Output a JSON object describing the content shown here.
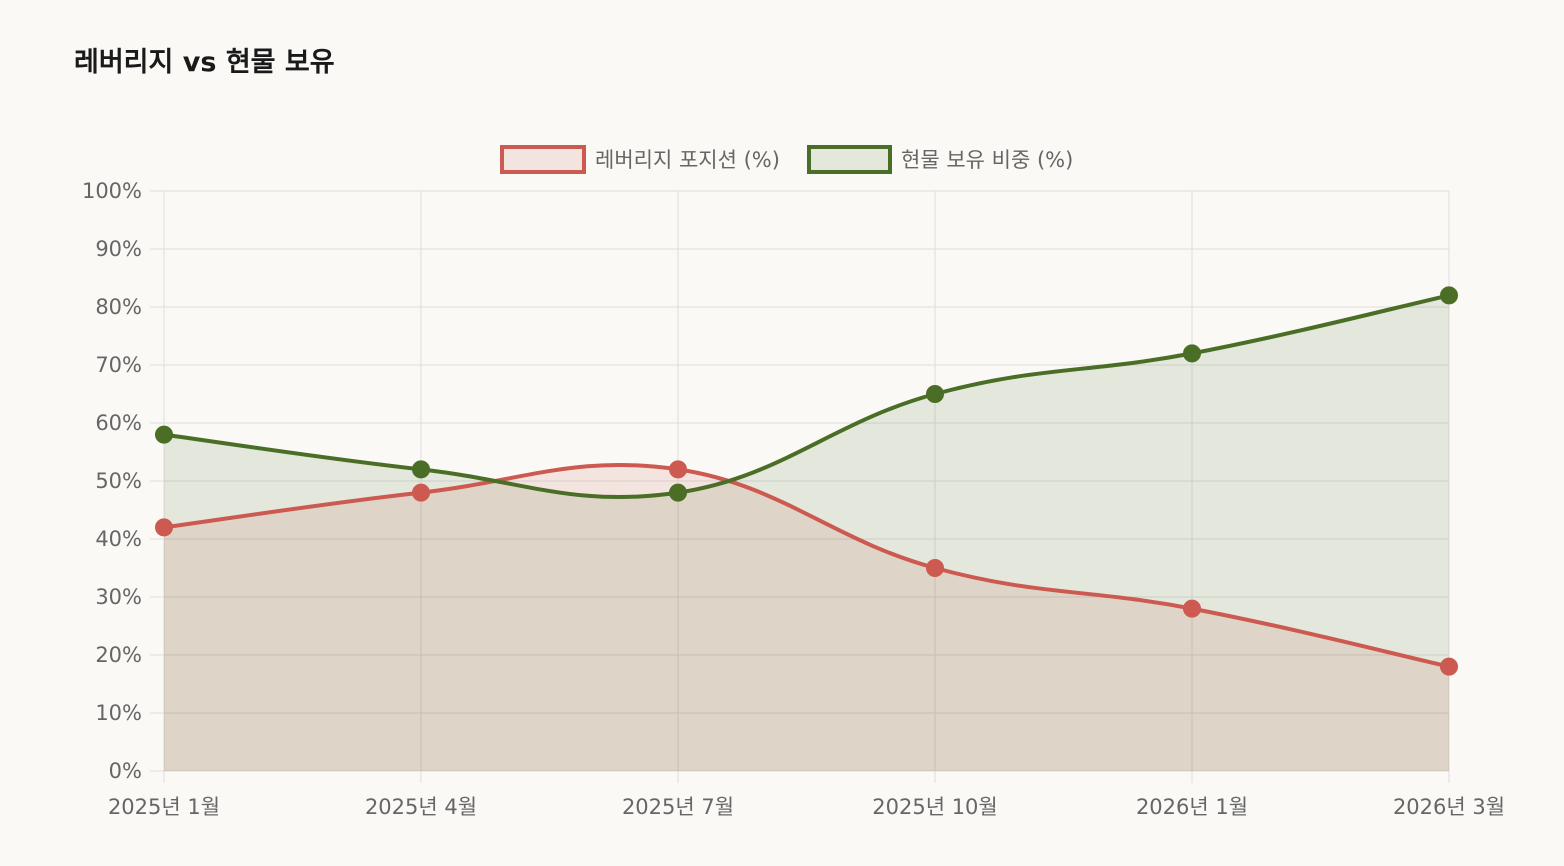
{
  "page": {
    "title": "레버리지 vs 현물 보유"
  },
  "colors": {
    "background": "#faf9f5",
    "grid": "#dddddd",
    "leverage_line": "#cc5a50",
    "leverage_fill": "rgba(204,90,80,0.13)",
    "spot_line": "#4a6e26",
    "spot_fill": "rgba(74,110,38,0.12)"
  },
  "chart_data": {
    "type": "area",
    "title": "레버리지 vs 현물 보유",
    "categories": [
      "2025년 1월",
      "2025년 4월",
      "2025년 7월",
      "2025년 10월",
      "2026년 1월",
      "2026년 3월"
    ],
    "series": [
      {
        "name": "레버리지 포지션 (%)",
        "values": [
          42,
          48,
          52,
          35,
          28,
          18
        ],
        "color": "#cc5a50"
      },
      {
        "name": "현물 보유 비중 (%)",
        "values": [
          58,
          52,
          48,
          65,
          72,
          82
        ],
        "color": "#4a6e26"
      }
    ],
    "ylim": [
      0,
      100
    ],
    "yticks": [
      0,
      10,
      20,
      30,
      40,
      50,
      60,
      70,
      80,
      90,
      100
    ],
    "y_tick_suffix": "%",
    "grid": true,
    "legend_position": "top-center",
    "xlabel": "",
    "ylabel": ""
  }
}
